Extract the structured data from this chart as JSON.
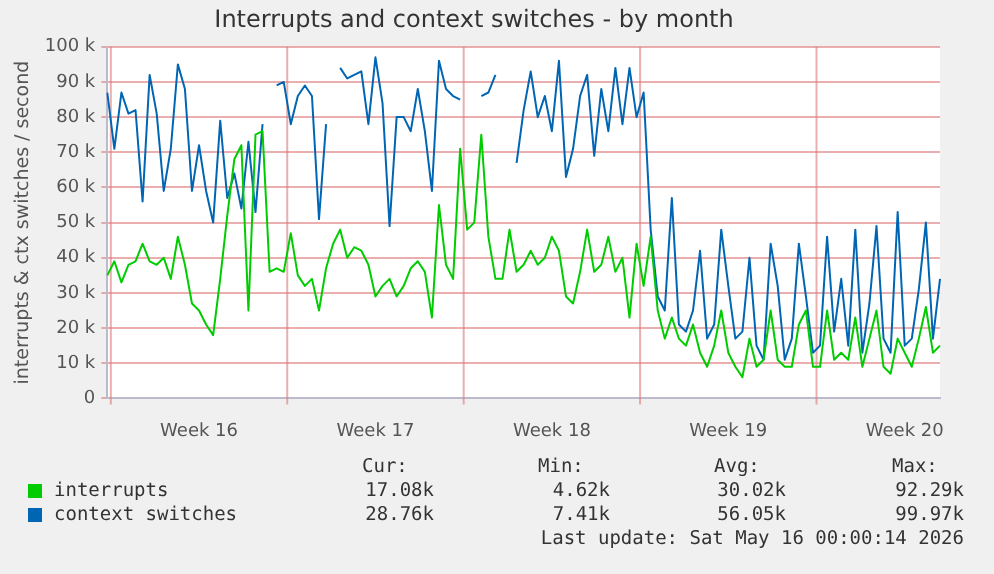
{
  "chart_data": {
    "type": "line",
    "title": "Interrupts and context switches - by month",
    "ylabel": "interrupts & ctx switches / second",
    "categories": [
      null,
      null,
      null,
      null,
      null,
      null,
      null,
      null,
      null,
      null,
      null,
      null,
      null,
      "Week 16",
      null,
      null,
      null,
      null,
      null,
      null,
      null,
      null,
      null,
      null,
      null,
      null,
      null,
      null,
      null,
      null,
      null,
      null,
      null,
      null,
      null,
      null,
      null,
      null,
      "Week 17",
      null,
      null,
      null,
      null,
      null,
      null,
      null,
      null,
      null,
      null,
      null,
      null,
      null,
      null,
      null,
      null,
      null,
      null,
      null,
      null,
      null,
      null,
      null,
      null,
      "Week 18",
      null,
      null,
      null,
      null,
      null,
      null,
      null,
      null,
      null,
      null,
      null,
      null,
      null,
      null,
      null,
      null,
      null,
      null,
      null,
      null,
      null,
      null,
      null,
      null,
      "Week 19",
      null,
      null,
      null,
      null,
      null,
      null,
      null,
      null,
      null,
      null,
      null,
      null,
      null,
      null,
      null,
      null,
      null,
      null,
      null,
      null,
      null,
      null,
      null,
      null,
      "Week 20",
      null,
      null,
      null,
      null,
      null
    ],
    "ylim": [
      0,
      100
    ],
    "yticks": [
      0,
      {
        "value": 10,
        "label": "10 k"
      },
      {
        "value": 20,
        "label": "20 k"
      },
      {
        "value": 30,
        "label": "30 k"
      },
      {
        "value": 40,
        "label": "40 k"
      },
      {
        "value": 50,
        "label": "50 k"
      },
      {
        "value": 60,
        "label": "60 k"
      },
      {
        "value": 70,
        "label": "70 k"
      },
      {
        "value": 80,
        "label": "80 k"
      },
      {
        "value": 90,
        "label": "90 k"
      },
      {
        "value": 100,
        "label": "100 k"
      }
    ],
    "grid": true,
    "legend": "bottom",
    "marker": "none",
    "line_style": "solid",
    "annotations": [
      "Cur:",
      "Min:",
      "Avg:",
      "Max:",
      "17.08k",
      "4.62k",
      "30.02k",
      "92.29k",
      "28.76k",
      "7.41k",
      "56.05k",
      "99.97k",
      "Last update: Sat May 16 00:00:14 2026"
    ],
    "series": [
      {
        "name": "interrupts",
        "color": "#00cc00",
        "values": [
          35,
          39,
          33,
          38,
          39,
          44,
          39,
          38,
          40,
          34,
          46,
          38,
          27,
          25,
          21,
          18,
          34,
          52,
          68,
          72,
          25,
          75,
          76,
          36,
          37,
          36,
          47,
          35,
          32,
          34,
          25,
          37,
          44,
          48,
          40,
          43,
          42,
          38,
          29,
          32,
          34,
          29,
          32,
          37,
          39,
          36,
          23,
          55,
          38,
          34,
          71,
          48,
          50,
          75,
          46,
          34,
          34,
          48,
          36,
          38,
          42,
          38,
          40,
          46,
          42,
          29,
          27,
          36,
          48,
          36,
          38,
          46,
          36,
          40,
          23,
          44,
          32,
          46,
          25,
          17,
          23,
          17,
          15,
          21,
          13,
          9,
          15,
          25,
          13,
          9,
          6,
          17,
          9,
          11,
          25,
          11,
          9,
          9,
          21,
          25,
          9,
          9,
          25,
          11,
          13,
          11,
          23,
          9,
          17,
          25,
          9,
          7,
          17,
          13,
          9,
          17,
          26,
          13,
          15
        ]
      },
      {
        "name": "context switches",
        "color": "#0066b3",
        "values": [
          87,
          71,
          87,
          81,
          82,
          56,
          92,
          81,
          59,
          71,
          95,
          88,
          59,
          72,
          59,
          50,
          79,
          57,
          64,
          54,
          73,
          53,
          78,
          null,
          89,
          90,
          78,
          86,
          89,
          86,
          51,
          78,
          null,
          94,
          91,
          92,
          93,
          78,
          97,
          84,
          49,
          80,
          80,
          76,
          88,
          76,
          59,
          96,
          88,
          86,
          85,
          null,
          null,
          86,
          87,
          92,
          null,
          null,
          67,
          82,
          93,
          80,
          86,
          76,
          96,
          63,
          71,
          86,
          92,
          69,
          88,
          76,
          94,
          78,
          94,
          80,
          87,
          48,
          29,
          25,
          57,
          21,
          19,
          25,
          42,
          17,
          21,
          48,
          32,
          17,
          19,
          40,
          15,
          11,
          44,
          32,
          11,
          17,
          44,
          29,
          13,
          15,
          46,
          19,
          34,
          15,
          48,
          13,
          27,
          49,
          17,
          13,
          53,
          15,
          17,
          31,
          50,
          17,
          34
        ]
      }
    ]
  }
}
